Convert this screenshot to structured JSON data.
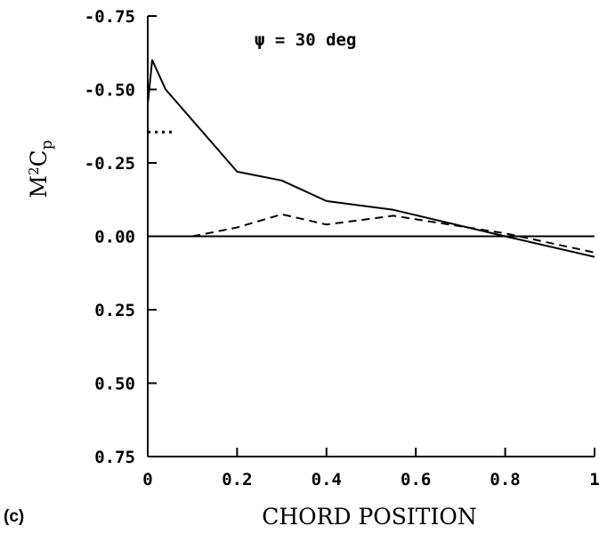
{
  "chart_data": {
    "type": "line",
    "xlabel": "CHORD POSITION",
    "ylabel": "M²Cp",
    "ylabel_main": "M",
    "ylabel_sup": "2",
    "ylabel_c": "C",
    "ylabel_sub": "p",
    "xlim": [
      0,
      1
    ],
    "ylim": [
      0.75,
      -0.75
    ],
    "y_inverted": true,
    "x_ticks": [
      0,
      0.2,
      0.4,
      0.6,
      0.8,
      1
    ],
    "x_tick_labels": [
      "0",
      "0.2",
      "0.4",
      "0.6",
      "0.8",
      "1"
    ],
    "y_ticks": [
      -0.75,
      -0.5,
      -0.25,
      0,
      0.25,
      0.5,
      0.75
    ],
    "y_tick_labels": [
      "-0.75",
      "-0.50",
      "-0.25",
      "0.00",
      "0.25",
      "0.50",
      "0.75"
    ],
    "annotation": "ψ =  30 deg",
    "panel_label": "(c)",
    "grid": false,
    "series": [
      {
        "style": "solid",
        "x": [
          0,
          0.01,
          0.04,
          0.2,
          0.3,
          0.4,
          0.55,
          0.8,
          1.0
        ],
        "y": [
          -0.45,
          -0.6,
          -0.5,
          -0.22,
          -0.19,
          -0.12,
          -0.09,
          0.0,
          0.07
        ]
      },
      {
        "style": "dashed",
        "x": [
          0.1,
          0.2,
          0.3,
          0.4,
          0.55,
          0.8,
          1.0
        ],
        "y": [
          0.0,
          -0.03,
          -0.075,
          -0.04,
          -0.07,
          -0.01,
          0.055
        ]
      },
      {
        "style": "dotted",
        "x": [
          0,
          0.06
        ],
        "y": [
          -0.355,
          -0.355
        ]
      }
    ]
  }
}
